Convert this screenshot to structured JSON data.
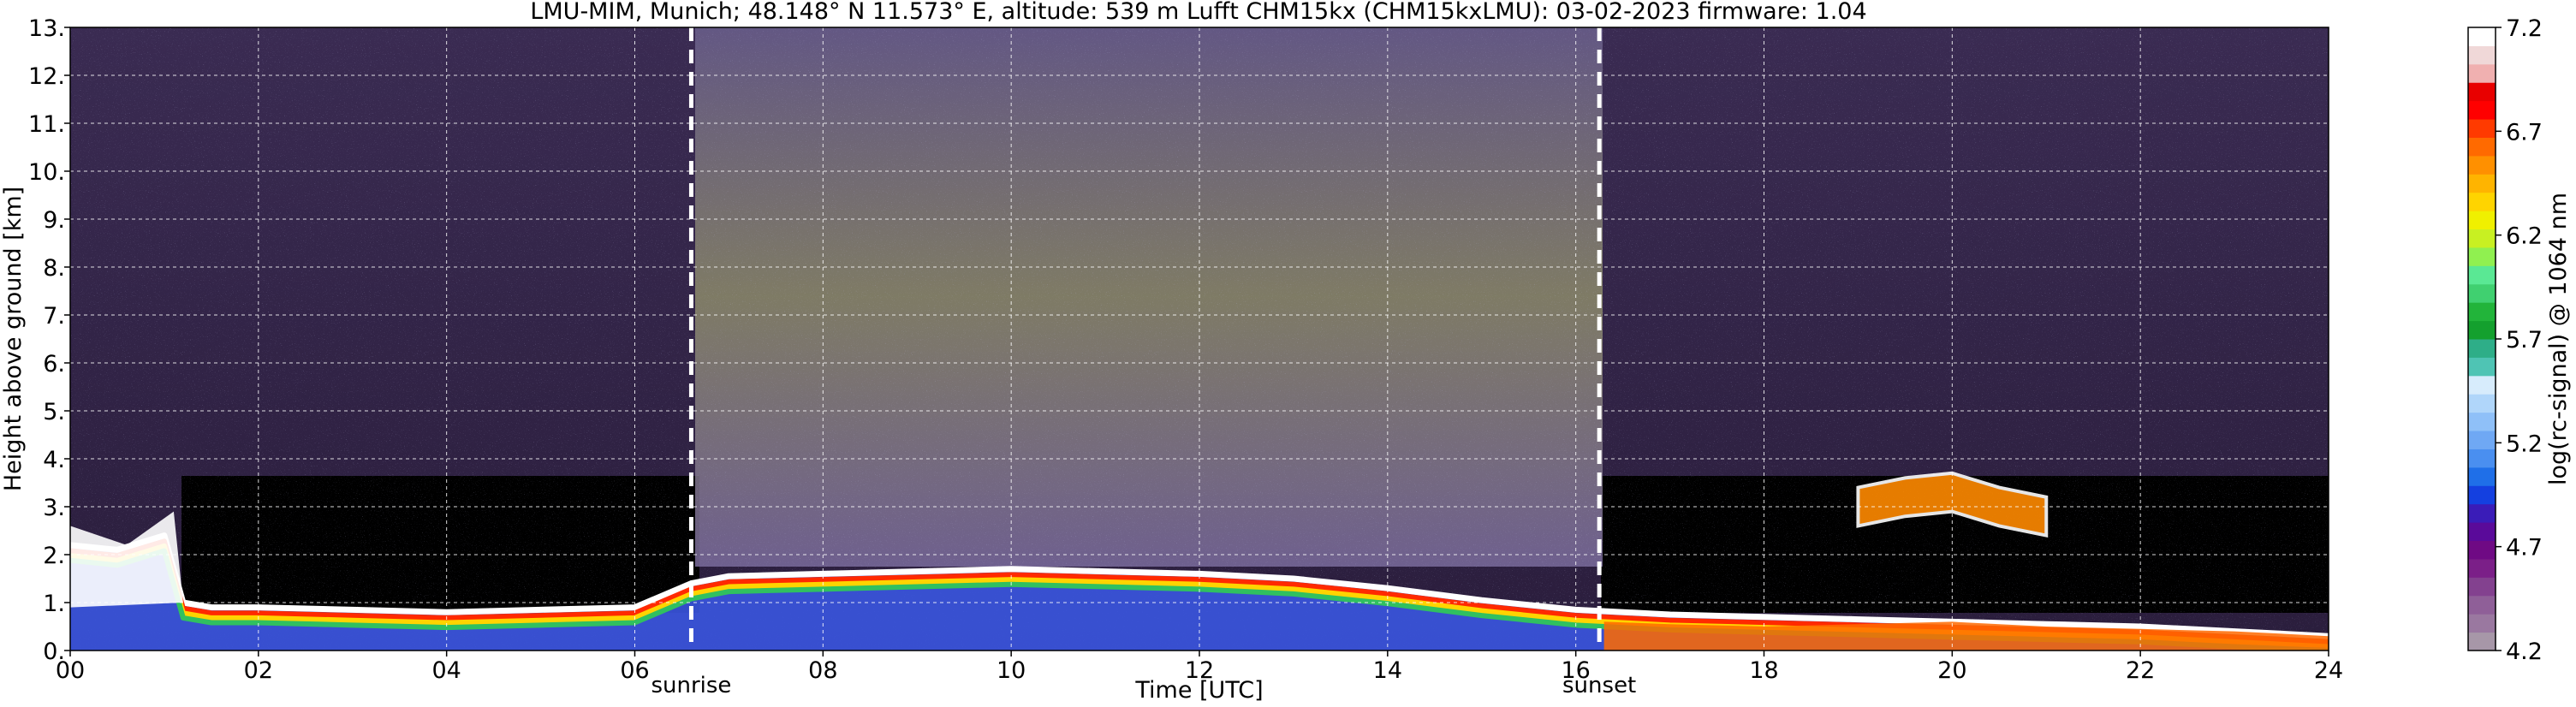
{
  "chart_data": {
    "type": "heatmap",
    "title": "LMU-MIM, Munich; 48.148° N 11.573° E, altitude: 539 m    Lufft CHM15kx (CHM15kxLMU): 03-02-2023    firmware: 1.04",
    "xlabel": "Time [UTC]",
    "ylabel": "Height above ground [km]",
    "xlim": [
      0,
      24
    ],
    "ylim": [
      0,
      13
    ],
    "x_ticks": [
      "00",
      "02",
      "04",
      "06",
      "08",
      "10",
      "12",
      "14",
      "16",
      "18",
      "20",
      "22",
      "24"
    ],
    "y_ticks": [
      "0.",
      "1.",
      "2.",
      "3.",
      "4.",
      "5.",
      "6.",
      "7.",
      "8.",
      "9.",
      "10.",
      "11.",
      "12.",
      "13."
    ],
    "grid": true,
    "markers": [
      {
        "label": "sunrise",
        "x": 6.6
      },
      {
        "label": "sunset",
        "x": 16.25
      }
    ],
    "colorbar": {
      "label": "log(rc-signal) @ 1064 nm",
      "range": [
        4.2,
        7.2
      ],
      "ticks": [
        "4.2",
        "4.7",
        "5.2",
        "5.7",
        "6.2",
        "6.7",
        "7.2"
      ],
      "colors": [
        "#a797a8",
        "#9a78a0",
        "#8f5f98",
        "#83418f",
        "#7b1f88",
        "#6f0a84",
        "#5a0a9a",
        "#3a1cb8",
        "#1440e0",
        "#1f6fe8",
        "#4a8ff0",
        "#6fa8f4",
        "#8fc0f8",
        "#b0d6fa",
        "#d7ecfc",
        "#4fc4b4",
        "#2eae88",
        "#14a02e",
        "#22b43a",
        "#40d070",
        "#5ae894",
        "#90f050",
        "#c8f022",
        "#f0f000",
        "#ffd400",
        "#ffb400",
        "#ff9000",
        "#ff6a00",
        "#ff3a00",
        "#ff0000",
        "#e80000",
        "#f0b0b0",
        "#f0d8d8",
        "#ffffff"
      ]
    },
    "layers": [
      {
        "name": "boundary-layer-top",
        "x": [
          0,
          0.5,
          1,
          1.2,
          1.5,
          2,
          3,
          4,
          5,
          6,
          6.6,
          7,
          8,
          9,
          10,
          11,
          12,
          13,
          14,
          15,
          16,
          17,
          18,
          19,
          20,
          21,
          22,
          23,
          24
        ],
        "y": [
          2.2,
          2.1,
          2.4,
          1.0,
          0.9,
          0.9,
          0.85,
          0.8,
          0.85,
          0.9,
          1.4,
          1.55,
          1.6,
          1.65,
          1.7,
          1.65,
          1.6,
          1.5,
          1.3,
          1.05,
          0.85,
          0.75,
          0.7,
          0.65,
          0.6,
          0.55,
          0.5,
          0.4,
          0.3
        ]
      },
      {
        "name": "elevated-aerosol-layer",
        "x": [
          19,
          19.5,
          20,
          20.5,
          21
        ],
        "y": [
          3.0,
          3.2,
          3.3,
          3.0,
          2.8
        ]
      }
    ]
  }
}
